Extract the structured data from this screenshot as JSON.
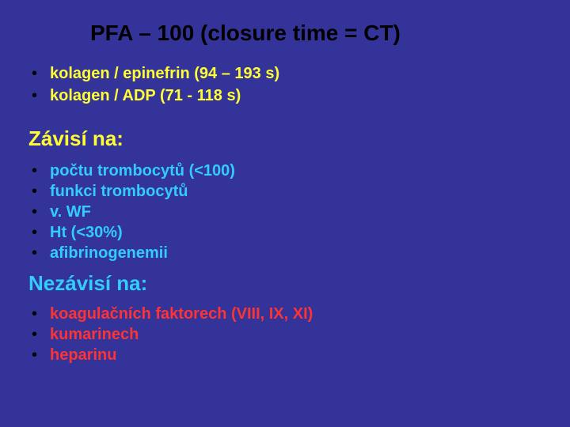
{
  "colors": {
    "background": "#333399",
    "title": "#000000",
    "bullet_dot": "#000000",
    "yellow": "#ffff33",
    "cyan": "#33ccff",
    "red": "#ff3333"
  },
  "typography": {
    "title_fontsize": 28,
    "heading_fontsize": 26,
    "body_fontsize": 20,
    "font_family": "Arial",
    "font_weight": "bold"
  },
  "title": "PFA – 100 (closure time = CT)",
  "top_items": [
    "kolagen / epinefrin (94 – 193 s)",
    "kolagen / ADP (71 - 118 s)"
  ],
  "depends_heading": "Závisí na:",
  "depends_items": [
    "počtu trombocytů (<100)",
    "funkci trombocytů",
    "v. WF",
    "Ht (<30%)",
    "afibrinogenemii"
  ],
  "not_depends_heading": "Nezávisí na:",
  "not_depends_items": [
    "koagulačních faktorech (VIII, IX, XI)",
    "kumarinech",
    "heparinu"
  ]
}
